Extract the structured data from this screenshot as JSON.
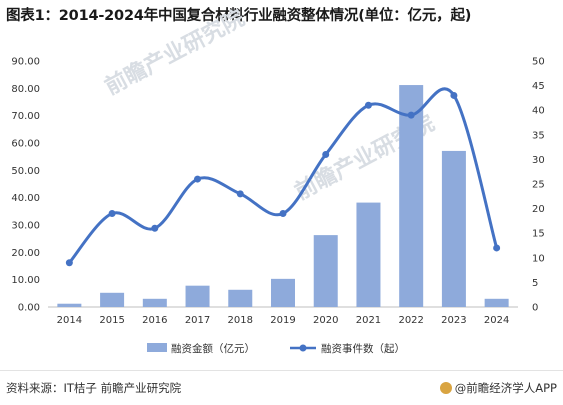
{
  "header": {
    "title": "图表1：2014-2024年中国复合材料行业融资整体情况(单位：亿元，起)"
  },
  "footer": {
    "source": "资料来源：IT桔子 前瞻产业研究院",
    "brand": "@前瞻经济学人APP"
  },
  "watermark": {
    "text": "前瞻产业研究院"
  },
  "colors": {
    "bar": "#8eaadb",
    "line": "#4472c4"
  },
  "chart_data": {
    "type": "bar",
    "categories": [
      "2014",
      "2015",
      "2016",
      "2017",
      "2018",
      "2019",
      "2020",
      "2021",
      "2022",
      "2023",
      "2024"
    ],
    "series": [
      {
        "name": "融资金额（亿元）",
        "type": "bar",
        "axis": "left",
        "values": [
          1.2,
          5.2,
          3.0,
          7.8,
          6.3,
          10.3,
          26.3,
          38.2,
          81.2,
          57.1,
          3.0
        ]
      },
      {
        "name": "融资事件数（起）",
        "type": "line",
        "axis": "right",
        "values": [
          9,
          19,
          16,
          26,
          23,
          19,
          31,
          41,
          39,
          43,
          12
        ]
      }
    ],
    "y_left": {
      "ylim": [
        0,
        90
      ],
      "ticks": [
        "0.00",
        "10.00",
        "20.00",
        "30.00",
        "40.00",
        "50.00",
        "60.00",
        "70.00",
        "80.00",
        "90.00"
      ]
    },
    "y_right": {
      "ylim": [
        0,
        50
      ],
      "ticks": [
        "0",
        "5",
        "10",
        "15",
        "20",
        "25",
        "30",
        "35",
        "40",
        "45",
        "50"
      ]
    },
    "legend_position": "bottom",
    "grid": false
  }
}
